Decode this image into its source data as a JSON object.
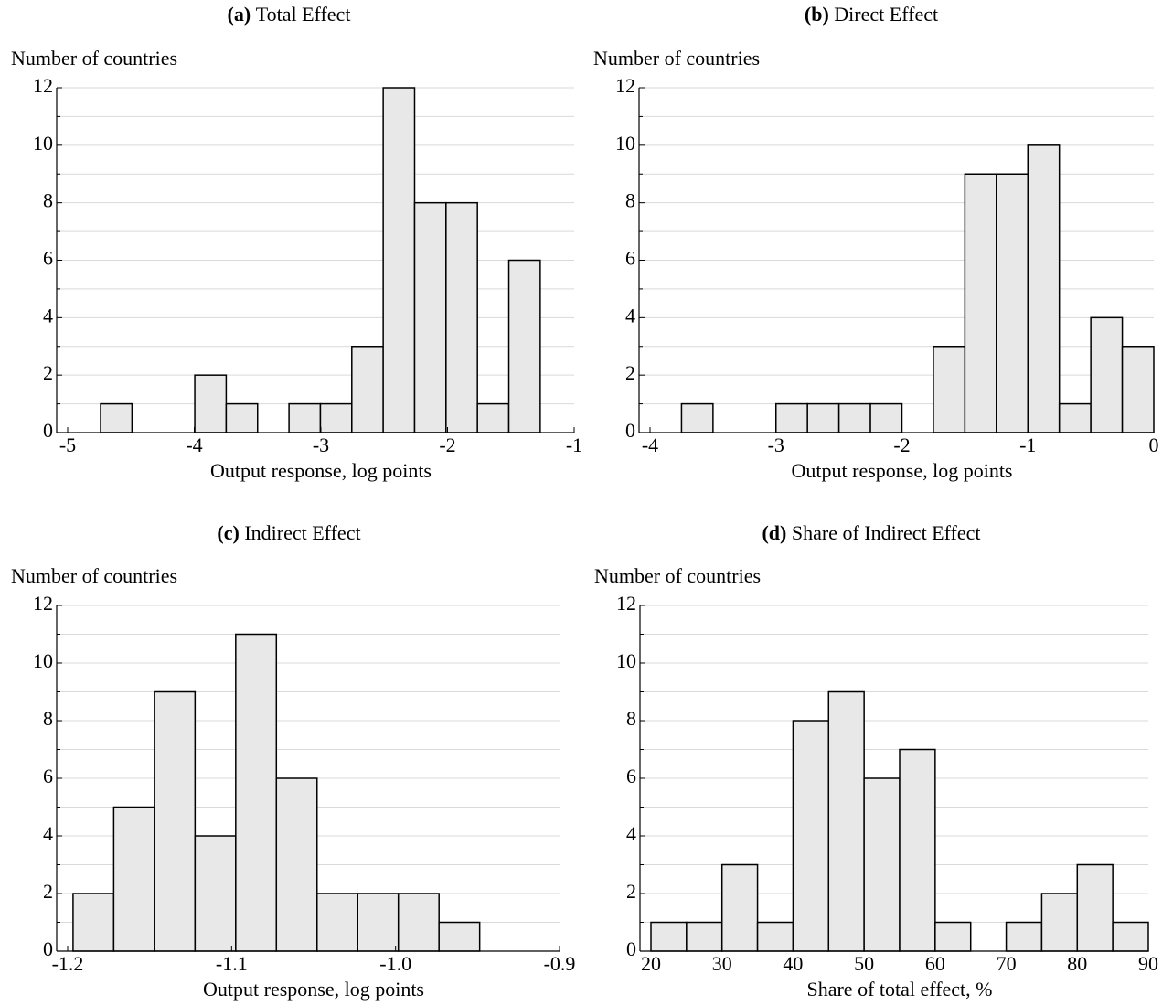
{
  "chart_data": [
    {
      "type": "histogram",
      "panel": "(a)",
      "title": "Total Effect",
      "ylabel": "Number of countries",
      "xlabel": "Output response, log points",
      "bins": [
        -4.74,
        -4.492,
        -4.244,
        -3.996,
        -3.748,
        -3.5,
        -3.252,
        -3.004,
        -2.756,
        -2.508,
        -2.26,
        -2.012,
        -1.764,
        -1.516,
        -1.268
      ],
      "values": [
        1,
        0,
        0,
        2,
        1,
        0,
        1,
        1,
        3,
        12,
        8,
        8,
        1,
        6
      ],
      "color": "#e8e8e8",
      "xlim": [
        -5,
        -1
      ],
      "xticks": [
        -5,
        -4,
        -3,
        -2,
        -1
      ],
      "ylim": [
        0,
        12
      ],
      "yticks": [
        0,
        2,
        4,
        6,
        8,
        10,
        12
      ],
      "minor_yticks": [
        1,
        3,
        5,
        7,
        9,
        11
      ],
      "grid": true
    },
    {
      "type": "histogram",
      "panel": "(b)",
      "title": "Direct Effect",
      "ylabel": "Number of countries",
      "xlabel": "Output response, log points",
      "bins": [
        -3.75,
        -3.5,
        -3.25,
        -3,
        -2.75,
        -2.5,
        -2.25,
        -2,
        -1.75,
        -1.5,
        -1.25,
        -1,
        -0.75,
        -0.5,
        -0.25,
        0
      ],
      "values": [
        1,
        0,
        0,
        1,
        1,
        1,
        1,
        0,
        3,
        9,
        9,
        10,
        1,
        4,
        3
      ],
      "color": "#e8e8e8",
      "xlim": [
        -4,
        0
      ],
      "xticks": [
        -4,
        -3,
        -2,
        -1,
        0
      ],
      "ylim": [
        0,
        12
      ],
      "yticks": [
        0,
        2,
        4,
        6,
        8,
        10,
        12
      ],
      "minor_yticks": [
        1,
        3,
        5,
        7,
        9,
        11
      ],
      "grid": true
    },
    {
      "type": "histogram",
      "panel": "(c)",
      "title": "Indirect Effect",
      "ylabel": "Number of countries",
      "xlabel": "Output response, log points",
      "bins": [
        -1.1967,
        -1.1719,
        -1.1471,
        -1.1223,
        -1.0975,
        -1.0727,
        -1.0479,
        -1.0231,
        -0.9983,
        -0.9735,
        -0.9487
      ],
      "values": [
        2,
        5,
        9,
        4,
        11,
        6,
        2,
        2,
        2,
        1
      ],
      "color": "#e8e8e8",
      "xlim": [
        -1.2,
        -0.9
      ],
      "xticks": [
        -1.2,
        -1.1,
        {
          "value": -1,
          "label": "-1.0"
        },
        -0.9
      ],
      "ylim": [
        0,
        12
      ],
      "yticks": [
        0,
        2,
        4,
        6,
        8,
        10,
        12
      ],
      "minor_yticks": [
        1,
        3,
        5,
        7,
        9,
        11
      ],
      "grid": true
    },
    {
      "type": "histogram",
      "panel": "(d)",
      "title": "Share of Indirect Effect",
      "ylabel": "Number of countries",
      "xlabel": "Share of total effect, %",
      "bins": [
        20,
        25,
        30,
        35,
        40,
        45,
        50,
        55,
        60,
        65,
        70,
        75,
        80,
        85,
        90
      ],
      "values": [
        1,
        1,
        3,
        1,
        8,
        9,
        6,
        7,
        1,
        0,
        1,
        2,
        3,
        1
      ],
      "color": "#e8e8e8",
      "xlim": [
        20,
        90
      ],
      "xticks": [
        20,
        30,
        40,
        50,
        60,
        70,
        80,
        90
      ],
      "ylim": [
        0,
        12
      ],
      "yticks": [
        0,
        2,
        4,
        6,
        8,
        10,
        12
      ],
      "minor_yticks": [
        1,
        3,
        5,
        7,
        9,
        11
      ],
      "grid": true
    }
  ]
}
